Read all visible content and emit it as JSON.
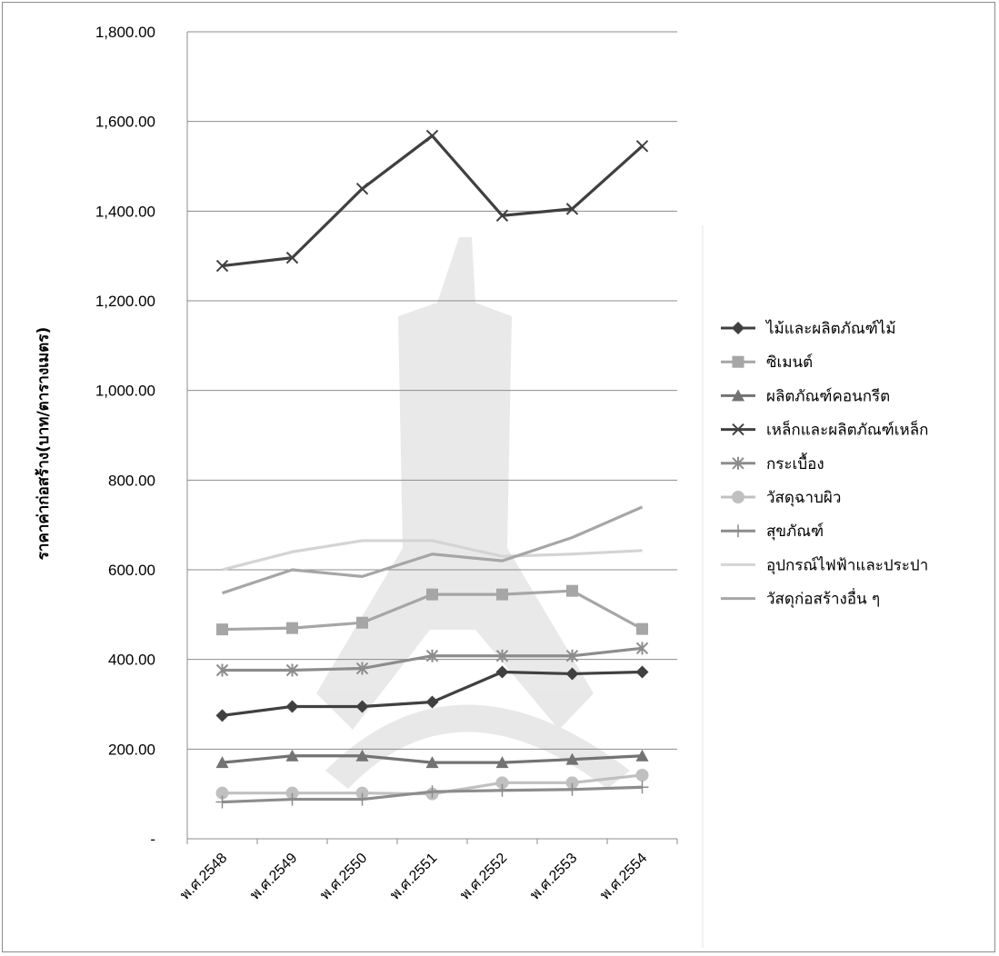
{
  "chart_data": {
    "type": "line",
    "title": "",
    "xlabel": "",
    "ylabel": "ราคาค่าก่อสร้าง(บาท/ตารางเมตร)",
    "ylim": [
      0,
      1800
    ],
    "y_ticks": [
      {
        "value": 0,
        "label": "-"
      },
      {
        "value": 200,
        "label": "200.00"
      },
      {
        "value": 400,
        "label": "400.00"
      },
      {
        "value": 600,
        "label": "600.00"
      },
      {
        "value": 800,
        "label": "800.00"
      },
      {
        "value": 1000,
        "label": "1,000.00"
      },
      {
        "value": 1200,
        "label": "1,200.00"
      },
      {
        "value": 1400,
        "label": "1,400.00"
      },
      {
        "value": 1600,
        "label": "1,600.00"
      },
      {
        "value": 1800,
        "label": "1,800.00"
      }
    ],
    "grid": true,
    "legend_position": "right",
    "categories": [
      "พ.ศ.2548",
      "พ.ศ.2549",
      "พ.ศ.2550",
      "พ.ศ.2551",
      "พ.ศ.2552",
      "พ.ศ.2553",
      "พ.ศ.2554"
    ],
    "series": [
      {
        "name": "ไม้และผลิตภัณฑ์ไม้",
        "marker": "diamond",
        "color": "#404040",
        "values": [
          275,
          295,
          295,
          305,
          372,
          368,
          372
        ]
      },
      {
        "name": "ซิเมนต์",
        "marker": "square",
        "color": "#a6a6a6",
        "values": [
          467,
          470,
          482,
          545,
          545,
          553,
          468
        ]
      },
      {
        "name": "ผลิตภัณฑ์คอนกรีต",
        "marker": "triangle",
        "color": "#737373",
        "values": [
          170,
          185,
          185,
          170,
          170,
          177,
          185
        ]
      },
      {
        "name": "เหล็กและผลิตภัณฑ์เหล็ก",
        "marker": "x",
        "color": "#404040",
        "values": [
          1278,
          1296,
          1450,
          1568,
          1390,
          1405,
          1545
        ]
      },
      {
        "name": "กระเบื้อง",
        "marker": "star",
        "color": "#8c8c8c",
        "values": [
          376,
          376,
          380,
          408,
          408,
          408,
          425
        ]
      },
      {
        "name": "วัสดุฉาบผิว",
        "marker": "circle",
        "color": "#c0c0c0",
        "values": [
          102,
          102,
          102,
          100,
          125,
          125,
          142
        ]
      },
      {
        "name": "สุขภัณฑ์",
        "marker": "plus",
        "color": "#8c8c8c",
        "values": [
          82,
          88,
          88,
          105,
          108,
          110,
          115
        ]
      },
      {
        "name": "อุปกรณ์ไฟฟ้าและประปา",
        "marker": "none",
        "color": "#d4d4d4",
        "values": [
          600,
          640,
          665,
          665,
          630,
          635,
          643
        ]
      },
      {
        "name": "วัสดุก่อสร้างอื่น ๆ",
        "marker": "none",
        "color": "#a6a6a6",
        "values": [
          548,
          600,
          585,
          635,
          620,
          672,
          740
        ]
      }
    ]
  }
}
